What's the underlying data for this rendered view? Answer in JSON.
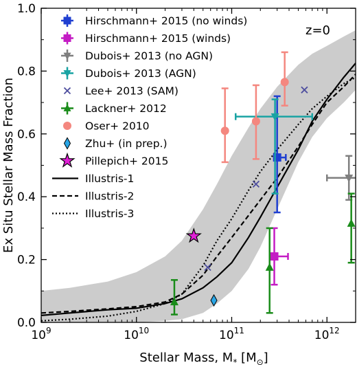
{
  "chart_data": {
    "type": "scatter",
    "annotation": "z=0",
    "xlabel": "Stellar Mass, M",
    "xlabel_sub": "*",
    "xlabel_unit_open": "[M",
    "xlabel_unit_sub": "⊙",
    "xlabel_unit_close": "]",
    "ylabel": "Ex Situ Stellar Mass Fraction",
    "xscale": "log",
    "xlim": [
      1000000000.0,
      2000000000000.0
    ],
    "ylim": [
      0.0,
      1.0
    ],
    "x_ticks": [
      {
        "value": 1000000000.0,
        "base": "10",
        "exp": "9"
      },
      {
        "value": 10000000000.0,
        "base": "10",
        "exp": "10"
      },
      {
        "value": 100000000000.0,
        "base": "10",
        "exp": "11"
      },
      {
        "value": 1000000000000.0,
        "base": "10",
        "exp": "12"
      }
    ],
    "y_ticks": [
      {
        "value": 0.0,
        "label": "0.0"
      },
      {
        "value": 0.2,
        "label": "0.2"
      },
      {
        "value": 0.4,
        "label": "0.4"
      },
      {
        "value": 0.6,
        "label": "0.6"
      },
      {
        "value": 0.8,
        "label": "0.8"
      },
      {
        "value": 1.0,
        "label": "1.0"
      }
    ],
    "band": {
      "color": "#cccccc",
      "x": [
        1000000000.0,
        2000000000.0,
        5000000000.0,
        10000000000.0,
        20000000000.0,
        30000000000.0,
        50000000000.0,
        70000000000.0,
        100000000000.0,
        150000000000.0,
        200000000000.0,
        300000000000.0,
        500000000000.0,
        700000000000.0,
        1000000000000.0,
        1500000000000.0,
        2000000000000.0
      ],
      "upper": [
        0.1,
        0.11,
        0.13,
        0.16,
        0.21,
        0.26,
        0.36,
        0.44,
        0.53,
        0.62,
        0.68,
        0.75,
        0.82,
        0.855,
        0.88,
        0.91,
        0.93
      ],
      "lower": [
        0.0,
        0.0,
        0.0,
        0.0,
        0.005,
        0.01,
        0.03,
        0.06,
        0.1,
        0.17,
        0.24,
        0.36,
        0.51,
        0.59,
        0.65,
        0.7,
        0.74
      ]
    },
    "series": [
      {
        "name": "Illustris-1",
        "kind": "line",
        "dash": "solid",
        "color": "#000000",
        "x": [
          1000000000.0,
          2000000000.0,
          5000000000.0,
          10000000000.0,
          20000000000.0,
          30000000000.0,
          50000000000.0,
          70000000000.0,
          100000000000.0,
          150000000000.0,
          200000000000.0,
          300000000000.0,
          500000000000.0,
          700000000000.0,
          1000000000000.0,
          1500000000000.0,
          2000000000000.0
        ],
        "y": [
          0.022,
          0.03,
          0.04,
          0.045,
          0.06,
          0.075,
          0.11,
          0.145,
          0.19,
          0.27,
          0.335,
          0.43,
          0.55,
          0.64,
          0.71,
          0.78,
          0.825
        ]
      },
      {
        "name": "Illustris-2",
        "kind": "line",
        "dash": "dashed",
        "color": "#000000",
        "x": [
          1000000000.0,
          2000000000.0,
          5000000000.0,
          10000000000.0,
          20000000000.0,
          30000000000.0,
          50000000000.0,
          70000000000.0,
          100000000000.0,
          150000000000.0,
          200000000000.0,
          300000000000.0,
          500000000000.0,
          700000000000.0,
          1000000000000.0,
          1500000000000.0,
          2000000000000.0
        ],
        "y": [
          0.03,
          0.035,
          0.043,
          0.05,
          0.065,
          0.09,
          0.15,
          0.21,
          0.27,
          0.34,
          0.39,
          0.46,
          0.56,
          0.63,
          0.7,
          0.75,
          0.79
        ]
      },
      {
        "name": "Illustris-3",
        "kind": "line",
        "dash": "dotted",
        "color": "#000000",
        "x": [
          1000000000.0,
          2000000000.0,
          5000000000.0,
          10000000000.0,
          20000000000.0,
          30000000000.0,
          50000000000.0,
          70000000000.0,
          100000000000.0,
          150000000000.0,
          200000000000.0,
          300000000000.0,
          500000000000.0,
          700000000000.0,
          1000000000000.0,
          1500000000000.0,
          2000000000000.0
        ],
        "y": [
          0.005,
          0.01,
          0.02,
          0.035,
          0.06,
          0.09,
          0.18,
          0.26,
          0.33,
          0.42,
          0.48,
          0.55,
          0.63,
          0.68,
          0.72,
          0.76,
          0.78
        ]
      },
      {
        "name": "Hirschmann+ 2015 (no winds)",
        "kind": "points",
        "marker": "square",
        "color": "#1f3fd1",
        "points": [
          {
            "x": 300000000000.0,
            "y": 0.525,
            "xerr": [
              280000000000.0,
              370000000000.0
            ],
            "yerr": [
              0.35,
              0.72
            ]
          }
        ]
      },
      {
        "name": "Hirschmann+ 2015 (winds)",
        "kind": "points",
        "marker": "square",
        "color": "#c41cc4",
        "points": [
          {
            "x": 280000000000.0,
            "y": 0.21,
            "xerr": [
              255000000000.0,
              390000000000.0
            ],
            "yerr": [
              0.12,
              0.3
            ]
          }
        ]
      },
      {
        "name": "Dubois+ 2013 (no AGN)",
        "kind": "points",
        "marker": "triangle-down",
        "color": "#7f7f7f",
        "points": [
          {
            "x": 1700000000000.0,
            "y": 0.46,
            "xerr": [
              1000000000000.0,
              2200000000000.0
            ],
            "yerr": [
              0.39,
              0.53
            ]
          }
        ]
      },
      {
        "name": "Dubois+ 2013 (AGN)",
        "kind": "points",
        "marker": "triangle-down",
        "color": "#19a3a3",
        "points": [
          {
            "x": 285000000000.0,
            "y": 0.655,
            "xerr": [
              110000000000.0,
              700000000000.0
            ],
            "yerr": [
              0.41,
              0.71
            ]
          }
        ]
      },
      {
        "name": "Lee+ 2013 (SAM)",
        "kind": "points",
        "marker": "x",
        "color": "#4d4d9e",
        "points": [
          {
            "x": 56000000000.0,
            "y": 0.175
          },
          {
            "x": 180000000000.0,
            "y": 0.44
          },
          {
            "x": 580000000000.0,
            "y": 0.74
          }
        ]
      },
      {
        "name": "Lackner+ 2012",
        "kind": "points",
        "marker": "triangle-up",
        "color": "#1a8c1a",
        "points": [
          {
            "x": 25000000000.0,
            "y": 0.065,
            "yerr": [
              0.025,
              0.135
            ]
          },
          {
            "x": 250000000000.0,
            "y": 0.175,
            "yerr": [
              0.03,
              0.3
            ]
          },
          {
            "x": 1800000000000.0,
            "y": 0.315,
            "yerr": [
              0.19,
              0.41
            ]
          }
        ]
      },
      {
        "name": "Oser+ 2010",
        "kind": "points",
        "marker": "circle",
        "color": "#f4877f",
        "points": [
          {
            "x": 85000000000.0,
            "y": 0.61,
            "yerr": [
              0.51,
              0.745
            ]
          },
          {
            "x": 180000000000.0,
            "y": 0.64,
            "yerr": [
              0.52,
              0.755
            ]
          },
          {
            "x": 360000000000.0,
            "y": 0.765,
            "yerr": [
              0.69,
              0.86
            ]
          }
        ]
      },
      {
        "name": "Zhu+ (in prep.)",
        "kind": "points",
        "marker": "diamond",
        "color": "#2aa6e6",
        "points": [
          {
            "x": 65000000000.0,
            "y": 0.07
          }
        ]
      },
      {
        "name": "Pillepich+ 2015",
        "kind": "points",
        "marker": "star",
        "color": "#e020d6",
        "points": [
          {
            "x": 40000000000.0,
            "y": 0.275
          }
        ]
      }
    ],
    "legend": {
      "placement": "top-left",
      "entries": [
        {
          "label": "Hirschmann+ 2015 (no winds)",
          "symbol": "errsquare",
          "color": "#1f3fd1"
        },
        {
          "label": "Hirschmann+ 2015 (winds)",
          "symbol": "errsquare",
          "color": "#c41cc4"
        },
        {
          "label": "Dubois+ 2013 (no AGN)",
          "symbol": "errtriangle-down",
          "color": "#7f7f7f"
        },
        {
          "label": "Dubois+ 2013 (AGN)",
          "symbol": "errtriangle-down",
          "color": "#19a3a3"
        },
        {
          "label": "Lee+ 2013 (SAM)",
          "symbol": "x",
          "color": "#4d4d9e"
        },
        {
          "label": "Lackner+ 2012",
          "symbol": "errtriangle-up",
          "color": "#1a8c1a"
        },
        {
          "label": "Oser+ 2010",
          "symbol": "circle",
          "color": "#f4877f"
        },
        {
          "label": "Zhu+ (in prep.)",
          "symbol": "diamond",
          "color": "#2aa6e6"
        },
        {
          "label": "Pillepich+ 2015",
          "symbol": "star",
          "color": "#e020d6"
        },
        {
          "label": "Illustris-1",
          "symbol": "line-solid",
          "color": "#000000"
        },
        {
          "label": "Illustris-2",
          "symbol": "line-dashed",
          "color": "#000000"
        },
        {
          "label": "Illustris-3",
          "symbol": "line-dotted",
          "color": "#000000"
        }
      ]
    }
  }
}
